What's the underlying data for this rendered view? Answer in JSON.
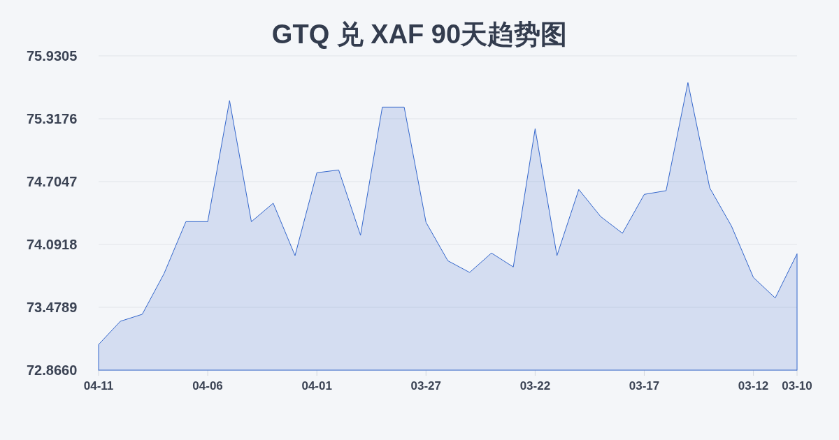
{
  "chart_data": {
    "type": "area",
    "title": "GTQ 兑 XAF 90天趋势图",
    "categories": [
      "04-11",
      null,
      null,
      null,
      null,
      "04-06",
      null,
      null,
      null,
      null,
      "04-01",
      null,
      null,
      null,
      null,
      "03-27",
      null,
      null,
      null,
      null,
      "03-22",
      null,
      null,
      null,
      null,
      "03-17",
      null,
      null,
      null,
      null,
      "03-12",
      null,
      "03-10"
    ],
    "series": [
      {
        "color": "#3366cc",
        "values": [
          73.116,
          73.343,
          73.411,
          73.808,
          74.314,
          74.314,
          75.495,
          74.314,
          74.494,
          73.983,
          74.791,
          74.818,
          74.182,
          75.431,
          75.431,
          74.308,
          73.933,
          73.819,
          74.008,
          73.872,
          75.22,
          73.983,
          74.628,
          74.364,
          74.201,
          74.58,
          74.616,
          75.67,
          74.643,
          74.269,
          73.77,
          73.57,
          74.001
        ]
      }
    ],
    "ylim": [
      72.866,
      75.9305
    ],
    "yticks": [
      {
        "value": 72.866,
        "label": "72.8660"
      },
      73.4789,
      74.0918,
      74.7047,
      75.3176,
      75.9305
    ],
    "grid": "y"
  }
}
